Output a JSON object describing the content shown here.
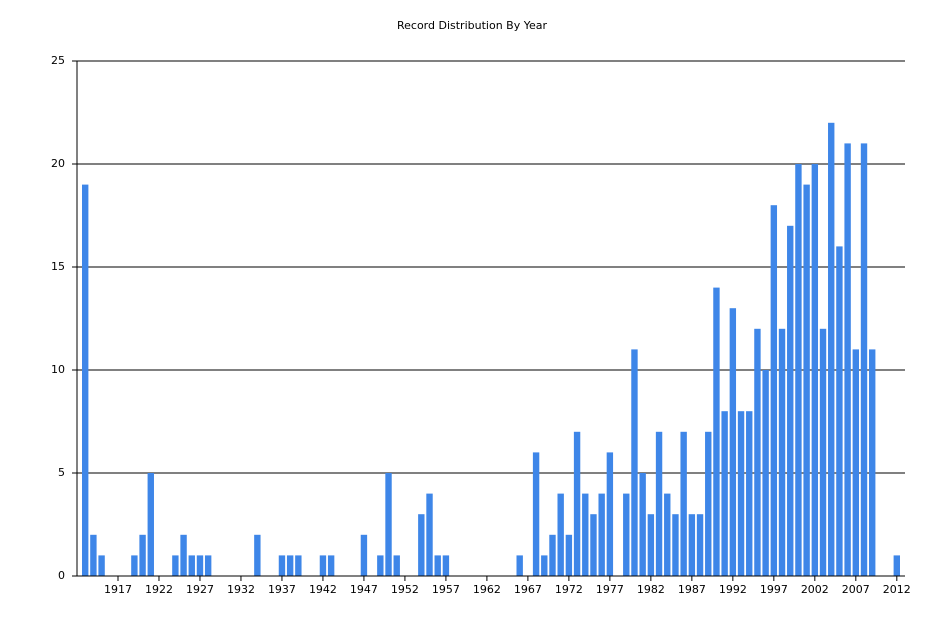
{
  "chart_data": {
    "type": "bar",
    "title": "Record Distribution By Year",
    "x": [
      1913,
      1914,
      1915,
      1919,
      1920,
      1921,
      1924,
      1925,
      1926,
      1927,
      1928,
      1934,
      1937,
      1938,
      1939,
      1942,
      1943,
      1947,
      1949,
      1950,
      1951,
      1954,
      1955,
      1956,
      1957,
      1966,
      1968,
      1969,
      1970,
      1971,
      1972,
      1973,
      1974,
      1975,
      1976,
      1977,
      1979,
      1980,
      1981,
      1982,
      1983,
      1984,
      1985,
      1986,
      1987,
      1988,
      1989,
      1990,
      1991,
      1992,
      1993,
      1994,
      1995,
      1996,
      1997,
      1998,
      1999,
      2000,
      2001,
      2002,
      2003,
      2004,
      2005,
      2006,
      2007,
      2008,
      2009,
      2012
    ],
    "values": [
      19,
      2,
      1,
      1,
      2,
      5,
      1,
      2,
      1,
      1,
      1,
      2,
      1,
      1,
      1,
      1,
      1,
      2,
      1,
      5,
      1,
      3,
      4,
      1,
      1,
      1,
      6,
      1,
      2,
      4,
      2,
      7,
      4,
      3,
      4,
      6,
      4,
      11,
      5,
      3,
      7,
      4,
      3,
      7,
      3,
      3,
      7,
      14,
      8,
      13,
      8,
      8,
      12,
      10,
      18,
      12,
      17,
      20,
      19,
      20,
      12,
      22,
      16,
      21,
      11,
      21,
      11,
      1
    ],
    "color": "#3e86e8",
    "xlim": [
      1912,
      2013
    ],
    "xticks": [
      1917,
      1922,
      1927,
      1932,
      1937,
      1942,
      1947,
      1952,
      1957,
      1962,
      1967,
      1972,
      1977,
      1982,
      1987,
      1992,
      1997,
      2002,
      2007,
      2012
    ],
    "ylim": [
      0,
      25
    ],
    "yticks": [
      0,
      5,
      10,
      15,
      20,
      25
    ],
    "grid": true
  }
}
